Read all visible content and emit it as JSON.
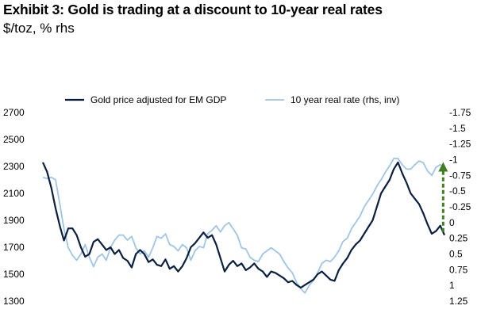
{
  "title": "Exhibit 3: Gold is trading at a discount to 10-year real rates",
  "subtitle": "$/toz, % rhs",
  "colors": {
    "gold_series": "#0b1f3f",
    "rate_series": "#9fc5e6",
    "arrow": "#3f7f1f"
  },
  "chart_data": {
    "type": "line",
    "title": "Exhibit 3: Gold is trading at a discount to 10-year real rates",
    "subtitle": "$/toz, % rhs",
    "legend_position": "top",
    "grid": false,
    "y_left": {
      "range": [
        1300,
        2700
      ],
      "ticks": [
        "1300",
        "1500",
        "1700",
        "1900",
        "2100",
        "2300",
        "2500",
        "2700"
      ]
    },
    "y_right": {
      "range": [
        1.25,
        -1.75
      ],
      "inverted": true,
      "ticks": [
        "-1.75",
        "-1.5",
        "-1.25",
        "-1",
        "-0.75",
        "-0.5",
        "-0.25",
        "0",
        "0.25",
        "0.5",
        "0.75",
        "1",
        "1.25"
      ]
    },
    "series": [
      {
        "name": "Gold price adjusted for EM GDP",
        "axis": "left",
        "values": [
          2330,
          2260,
          2140,
          1990,
          1860,
          1750,
          1840,
          1840,
          1790,
          1700,
          1630,
          1650,
          1740,
          1760,
          1720,
          1680,
          1700,
          1650,
          1680,
          1620,
          1600,
          1550,
          1650,
          1680,
          1650,
          1590,
          1610,
          1570,
          1560,
          1610,
          1540,
          1560,
          1520,
          1560,
          1620,
          1700,
          1730,
          1770,
          1810,
          1770,
          1790,
          1720,
          1620,
          1520,
          1570,
          1600,
          1560,
          1580,
          1530,
          1550,
          1580,
          1540,
          1520,
          1480,
          1520,
          1510,
          1490,
          1470,
          1440,
          1450,
          1420,
          1400,
          1420,
          1440,
          1460,
          1500,
          1520,
          1490,
          1460,
          1450,
          1530,
          1580,
          1620,
          1680,
          1720,
          1750,
          1800,
          1850,
          1900,
          2000,
          2100,
          2150,
          2200,
          2280,
          2330,
          2250,
          2180,
          2100,
          2060,
          2020,
          1950,
          1870,
          1800,
          1820,
          1860,
          1790
        ]
      },
      {
        "name": "10 year real rate (rhs, inv)",
        "axis": "right",
        "values": [
          -0.72,
          -0.7,
          -0.72,
          -0.68,
          -0.3,
          0.1,
          0.4,
          0.52,
          0.6,
          0.5,
          0.35,
          0.55,
          0.7,
          0.55,
          0.5,
          0.6,
          0.4,
          0.28,
          0.2,
          0.2,
          0.28,
          0.22,
          0.4,
          0.5,
          0.45,
          0.55,
          0.4,
          0.22,
          0.25,
          0.18,
          0.35,
          0.38,
          0.45,
          0.35,
          0.4,
          0.6,
          0.45,
          0.38,
          0.4,
          0.18,
          0.12,
          0.05,
          0.15,
          0.05,
          0.0,
          0.1,
          0.2,
          0.4,
          0.42,
          0.55,
          0.6,
          0.62,
          0.5,
          0.45,
          0.4,
          0.45,
          0.5,
          0.62,
          0.72,
          0.8,
          0.95,
          1.05,
          1.12,
          1.0,
          0.92,
          0.8,
          0.65,
          0.6,
          0.62,
          0.55,
          0.45,
          0.3,
          0.25,
          0.1,
          0.0,
          -0.1,
          -0.25,
          -0.35,
          -0.45,
          -0.58,
          -0.68,
          -0.8,
          -0.9,
          -1.02,
          -1.02,
          -0.92,
          -0.85,
          -0.85,
          -0.92,
          -0.98,
          -0.95,
          -0.82,
          -0.75,
          -0.88,
          -0.92,
          -0.88
        ]
      }
    ],
    "annotations": [
      {
        "type": "arrow",
        "direction": "up",
        "style": "dashed",
        "color": "#3f7f1f",
        "x_index": 96,
        "from_right": 0.15,
        "to_right": -0.95
      }
    ]
  }
}
